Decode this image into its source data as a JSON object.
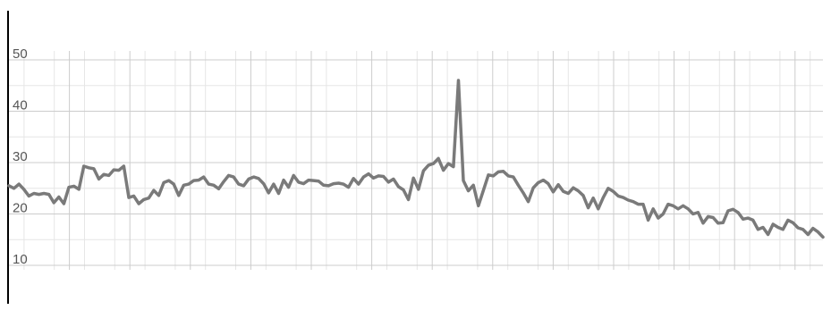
{
  "chart_data": {
    "type": "line",
    "title": "",
    "xlabel": "",
    "ylabel": "",
    "ylim": [
      10,
      50
    ],
    "y_ticks": [
      "50",
      "40",
      "30",
      "20",
      "10"
    ],
    "grid": true,
    "legend": "none",
    "colors": {
      "line": "#7a7a7a",
      "grid_major": "#cccccc",
      "grid_minor": "#e6e6e6",
      "axis": "#000000",
      "label": "#555555"
    },
    "series": [
      {
        "values": [
          25.5,
          25,
          25.8,
          24.8,
          23.5,
          24,
          23.8,
          24,
          23.8,
          22.2,
          23.3,
          22,
          25.2,
          25.4,
          24.8,
          29.3,
          29,
          28.8,
          26.8,
          27.7,
          27.5,
          28.6,
          28.5,
          29.3,
          23.2,
          23.5,
          22,
          22.8,
          23.1,
          24.6,
          23.6,
          26.1,
          26.5,
          25.8,
          23.6,
          25.6,
          25.8,
          26.5,
          26.6,
          27.2,
          25.8,
          25.6,
          24.9,
          26.3,
          27.5,
          27.2,
          25.8,
          25.5,
          26.8,
          27.2,
          26.9,
          25.9,
          24.1,
          25.8,
          24,
          26.6,
          25.2,
          27.5,
          26.2,
          25.9,
          26.6,
          26.5,
          26.4,
          25.6,
          25.5,
          25.9,
          26,
          25.8,
          25.2,
          26.9,
          25.8,
          27.2,
          27.8,
          27,
          27.4,
          27.3,
          26.2,
          26.8,
          25.3,
          24.7,
          22.8,
          27,
          24.8,
          28.4,
          29.5,
          29.8,
          30.8,
          28.5,
          29.8,
          29.2,
          46,
          26.5,
          24.5,
          25.6,
          21.6,
          24.6,
          27.6,
          27.4,
          28.2,
          28.3,
          27.4,
          27.2,
          25.6,
          24.1,
          22.4,
          25.1,
          26.1,
          26.6,
          25.9,
          24.3,
          25.7,
          24.4,
          24,
          25.1,
          24.5,
          23.6,
          21.2,
          23.1,
          21,
          23.2,
          25,
          24.4,
          23.5,
          23.2,
          22.7,
          22.4,
          21.9,
          21.9,
          18.8,
          21,
          19.2,
          20,
          21.9,
          21.6,
          21,
          21.6,
          21,
          20,
          20.3,
          18.2,
          19.5,
          19.3,
          18.2,
          18.3,
          20.6,
          20.9,
          20.3,
          19,
          19.2,
          18.8,
          17,
          17.4,
          16,
          18,
          17.4,
          17,
          18.8,
          18.3,
          17.3,
          17,
          16,
          17.2,
          16.5,
          15.5
        ]
      }
    ]
  }
}
